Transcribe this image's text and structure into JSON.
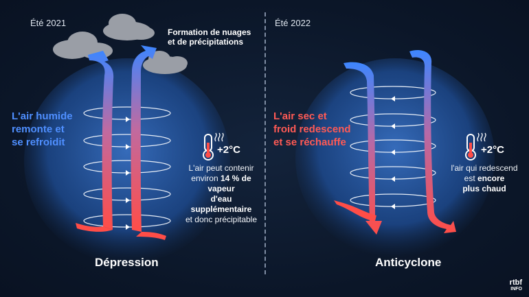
{
  "left": {
    "season": "Été 2021",
    "clouds_label_line1": "Formation de nuages",
    "clouds_label_line2": "et de précipitations",
    "side_line1": "L'air humide",
    "side_line2": "remonte et",
    "side_line3": "se refroidit",
    "temp": "+2°C",
    "info_line1": "L'air peut contenir",
    "info_line2_pre": "environ ",
    "info_line2_bold": "14 % de vapeur",
    "info_line3_bold": "d'eau supplémentaire",
    "info_line4": "et donc précipitable",
    "title": "Dépression"
  },
  "right": {
    "season": "Été 2022",
    "side_line1": "L'air sec et",
    "side_line2": "froid redescend",
    "side_line3": "et se réchauffe",
    "temp": "+2°C",
    "info_line1": "l'air qui redescend",
    "info_line2_pre": "est ",
    "info_line2_bold": "encore",
    "info_line3_bold": "plus chaud",
    "title": "Anticyclone"
  },
  "logo": {
    "brand": "rtbf",
    "sub": "INFO"
  },
  "colors": {
    "blue": "#4f8fff",
    "red": "#ff5a55",
    "sphere": "#2a5aa8",
    "cloud": "#9a9ea6"
  },
  "icons": [
    "thermometer-icon",
    "cloud-icon",
    "arrow-icon"
  ]
}
